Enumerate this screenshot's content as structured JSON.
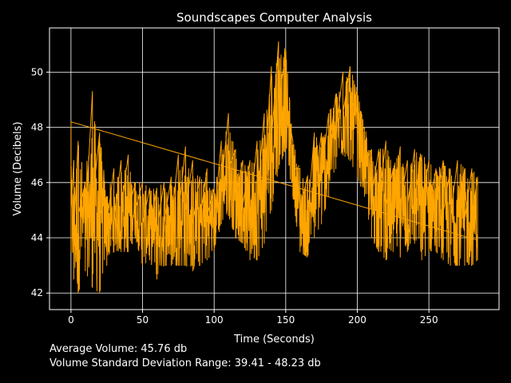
{
  "chart_data": {
    "type": "line",
    "title": "Soundscapes Computer Analysis",
    "xlabel": "Time (Seconds)",
    "ylabel": "Volume (Decibels)",
    "xlim": [
      -15,
      299
    ],
    "ylim": [
      41.4,
      51.6
    ],
    "xticks": [
      0,
      50,
      100,
      150,
      200,
      250
    ],
    "yticks": [
      42,
      44,
      46,
      48,
      50
    ],
    "grid": true,
    "colors": {
      "background": "#000000",
      "line": "#ffa500",
      "grid": "#ffffff",
      "text": "#ffffff"
    },
    "series": [
      {
        "color": "#ffa500",
        "envelope_x": [
          0,
          2,
          5,
          10,
          15,
          20,
          25,
          30,
          35,
          40,
          45,
          50,
          55,
          60,
          65,
          70,
          75,
          80,
          85,
          90,
          95,
          100,
          105,
          110,
          115,
          120,
          125,
          130,
          135,
          140,
          145,
          150,
          155,
          160,
          165,
          170,
          175,
          180,
          185,
          190,
          195,
          200,
          205,
          210,
          215,
          220,
          225,
          230,
          235,
          240,
          245,
          250,
          255,
          260,
          265,
          270,
          275,
          280,
          284
        ],
        "envelope_max": [
          48.2,
          46.8,
          47.5,
          46.0,
          49.3,
          47.8,
          45.5,
          46.5,
          46.8,
          47.0,
          46.0,
          46.0,
          45.8,
          45.8,
          46.0,
          46.2,
          47.0,
          47.3,
          46.8,
          46.2,
          46.5,
          45.8,
          47.5,
          48.5,
          47.2,
          46.8,
          46.8,
          47.5,
          48.5,
          50.2,
          51.1,
          50.8,
          47.5,
          46.5,
          46.2,
          47.8,
          47.8,
          48.5,
          49.2,
          50.0,
          50.2,
          49.3,
          48.0,
          47.2,
          47.2,
          47.5,
          46.5,
          47.3,
          46.8,
          47.2,
          47.0,
          46.8,
          46.5,
          46.8,
          46.5,
          46.8,
          46.5,
          46.5,
          46.2
        ],
        "envelope_min": [
          43.5,
          42.5,
          42.0,
          42.8,
          42.2,
          42.0,
          43.0,
          43.5,
          43.5,
          43.5,
          44.0,
          43.0,
          43.2,
          42.5,
          43.0,
          43.0,
          43.0,
          43.0,
          42.8,
          43.0,
          43.2,
          43.5,
          44.5,
          44.8,
          44.0,
          43.8,
          43.2,
          43.2,
          43.8,
          45.0,
          46.5,
          47.2,
          45.5,
          43.5,
          43.3,
          44.0,
          44.5,
          45.5,
          46.5,
          47.0,
          46.8,
          46.2,
          45.5,
          44.0,
          43.5,
          43.2,
          43.5,
          43.3,
          43.5,
          43.8,
          43.2,
          43.5,
          43.5,
          43.2,
          43.0,
          43.0,
          43.0,
          43.0,
          43.2
        ],
        "envelope_mid": [
          45.0,
          44.2,
          44.8,
          44.5,
          45.2,
          44.8,
          44.5,
          44.6,
          45.0,
          45.0,
          45.0,
          44.5,
          44.4,
          44.2,
          44.5,
          44.5,
          44.8,
          45.0,
          44.5,
          44.6,
          44.8,
          44.6,
          45.8,
          46.5,
          45.5,
          45.2,
          44.8,
          45.3,
          46.0,
          47.5,
          48.8,
          49.0,
          46.5,
          45.0,
          44.5,
          45.8,
          46.2,
          47.0,
          47.8,
          48.5,
          48.5,
          47.8,
          46.7,
          45.5,
          45.3,
          45.2,
          45.0,
          45.2,
          45.1,
          45.4,
          45.1,
          45.1,
          45.0,
          44.9,
          44.7,
          44.9,
          44.7,
          44.7,
          44.7
        ]
      }
    ]
  },
  "footer": {
    "avg_line": "Average Volume: 45.76 db",
    "range_line": "Volume Standard Deviation Range: 39.41 - 48.23 db"
  }
}
